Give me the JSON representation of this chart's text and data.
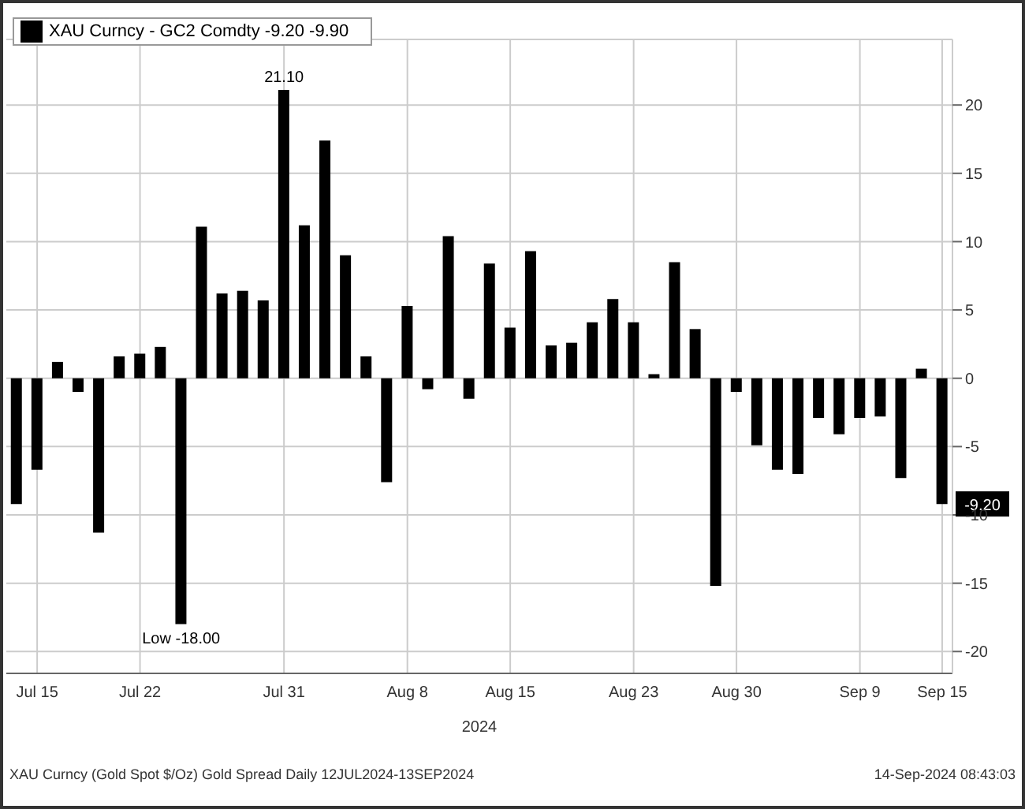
{
  "chart_data": {
    "type": "bar",
    "xlabel": "2024",
    "categories": [
      null,
      "Jul 15",
      null,
      null,
      null,
      null,
      "Jul 22",
      null,
      null,
      null,
      null,
      null,
      null,
      "Jul 31",
      null,
      null,
      null,
      null,
      null,
      "Aug 8",
      null,
      null,
      null,
      null,
      "Aug 15",
      null,
      null,
      null,
      null,
      null,
      "Aug 23",
      null,
      null,
      null,
      null,
      "Aug 30",
      null,
      null,
      null,
      null,
      null,
      "Sep 9",
      null,
      null,
      null,
      "Sep 15"
    ],
    "series": [
      {
        "name": "XAU Curncy - GC2 Comdty -9.20 -9.90",
        "color": "#000000",
        "values": [
          -9.2,
          -6.7,
          1.2,
          -1.0,
          -11.3,
          1.6,
          1.8,
          2.3,
          -18.0,
          11.1,
          6.2,
          6.4,
          5.7,
          21.1,
          11.2,
          17.4,
          9.0,
          1.6,
          -7.6,
          5.3,
          -0.8,
          10.4,
          -1.5,
          8.4,
          3.7,
          9.3,
          2.4,
          2.6,
          4.1,
          5.8,
          4.1,
          0.3,
          8.5,
          3.6,
          -15.2,
          -1.0,
          -4.9,
          -6.7,
          -7.0,
          -2.9,
          -4.1,
          -2.9,
          -2.8,
          -7.3,
          0.7,
          -9.2
        ]
      }
    ],
    "ylim": [
      -21.6,
      24.8
    ],
    "yticks": [
      -20,
      -15,
      -10,
      -5,
      0,
      5,
      10,
      15,
      20
    ],
    "grid": true,
    "legend": "top left",
    "annotations": [
      {
        "text": "21.10",
        "y": 21.1
      },
      {
        "text": "Low -18.00",
        "y": -18.0
      },
      "-9.20",
      "XAU Curncy (Gold Spot $/Oz) Gold Spread Daily 12JUL2024-13SEP2024",
      "14-Sep-2024 08:43:03"
    ]
  }
}
